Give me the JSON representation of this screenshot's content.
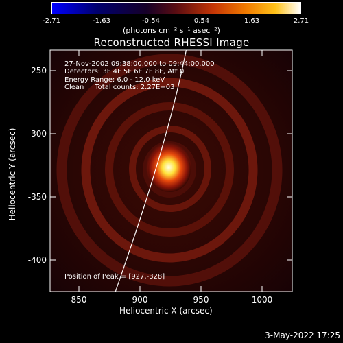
{
  "colorbar": {
    "ticks": [
      "-2.71",
      "-1.63",
      "-0.54",
      "0.54",
      "1.63",
      "2.71"
    ],
    "unit_label": "(photons cm⁻² s⁻¹ asec⁻²)"
  },
  "plot": {
    "title": "Reconstructed RHESSI Image",
    "annotation_lines": [
      "27-Nov-2002 09:38:00.000 to 09:44:00.000",
      "Detectors: 3F 4F 5F 6F 7F 8F, Att 0",
      "Energy Range: 6.0 - 12.0 keV",
      "Clean     Total counts: 2.27E+03"
    ],
    "peak_label": "Position of Peak = [927,-328]",
    "xlabel": "Heliocentric X (arcsec)",
    "ylabel": "Heliocentric Y (arcsec)",
    "xticks": [
      "850",
      "900",
      "950",
      "1000"
    ],
    "yticks": [
      "-250",
      "-300",
      "-350",
      "-400"
    ]
  },
  "footer": {
    "datestamp": "3-May-2022 17:25"
  },
  "chart_data": {
    "type": "heatmap",
    "title": "Reconstructed RHESSI Image",
    "xlabel": "Heliocentric X (arcsec)",
    "ylabel": "Heliocentric Y (arcsec)",
    "xlim": [
      830,
      1025
    ],
    "ylim": [
      -425,
      -235
    ],
    "xticks": [
      850,
      900,
      950,
      1000
    ],
    "yticks": [
      -250,
      -300,
      -350,
      -400
    ],
    "colorbar_range": [
      -2.71,
      2.71
    ],
    "colorbar_ticks": [
      -2.71,
      -1.63,
      -0.54,
      0.54,
      1.63,
      2.71
    ],
    "colorbar_unit": "(photons cm⁻² s⁻¹ asec⁻²)",
    "peak": [
      927,
      -328
    ],
    "colormap": "hot",
    "limb_color": "#ffffff",
    "background_color": "#000000"
  }
}
